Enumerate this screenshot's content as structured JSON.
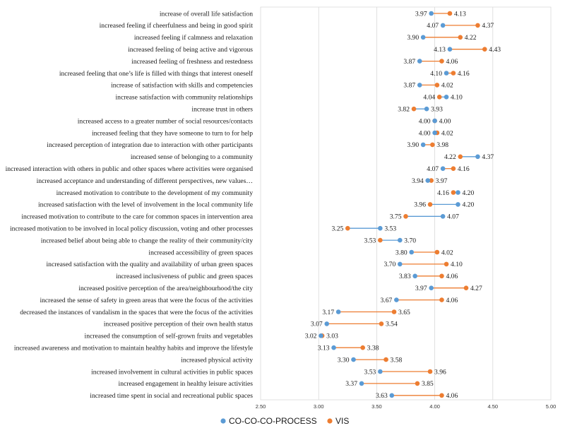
{
  "chart_data": {
    "type": "dumbbell",
    "xlim": [
      2.5,
      5.0
    ],
    "x_ticks": [
      "2.50",
      "3.00",
      "3.50",
      "4.00",
      "4.50",
      "5.00"
    ],
    "grid": "vertical",
    "legend_position": "bottom-center",
    "series": [
      {
        "name": "CO-CO-CO-PROCESS",
        "color": "#5b9bd5"
      },
      {
        "name": "VIS",
        "color": "#ed7d31"
      }
    ],
    "categories": [
      "increase of overall life satisfaction",
      "increased feeling if cheerfulness and being in good spirit",
      "increased feeling if calmness and relaxation",
      "increased feeling of being active and vigorous",
      "increased feeling of freshness and restedness",
      "increased feeling that one’s life is filled with things that interest oneself",
      "increase of satisfaction with skills and competencies",
      "increase satisfaction with community relationships",
      "increase trust in others",
      "increased access to a greater number of social resources/contacts",
      "increased feeling that they have someone to turn to for help",
      "increased perception of integration due to interaction with other participants",
      "increased sense of belonging to a community",
      "increased interaction with others in public and other spaces where activities were organised",
      "increased acceptance and understanding of different perspectives, new values…",
      "increased motivation to contribute to the development of my community",
      "increased satisfaction with the level of involvement in the local community life",
      "increased motivation to contribute to the care for common spaces in intervention area",
      "increased motivation to be involved in local policy discussion, voting and other processes",
      "increased belief about being able to change the reality of their community/city",
      "increased accessibility of green spaces",
      "increased satisfaction with the quality and availability of urban green spaces",
      "increased inclusiveness of public and green spaces",
      "increased positive perception of the area/neighbourhood/the city",
      "increased the sense of safety in green areas that were the focus of the activities",
      "decreased the instances of vandalism in the spaces that were the focus of the activities",
      "increased positive perception of their own health status",
      "increased the consumption of self-grown fruits and vegetables",
      "increased awareness and motivation to maintain healthy habits and improve the lifestyle",
      "increased physical activity",
      "increased involvement in cultural activities in public spaces",
      "increased engagement in healthy leisure activities",
      "increased time spent in social and recreational public spaces"
    ],
    "cococo": [
      3.97,
      4.07,
      3.9,
      4.13,
      3.87,
      4.1,
      3.87,
      4.1,
      3.93,
      4.0,
      4.0,
      3.9,
      4.37,
      4.07,
      3.94,
      4.2,
      4.2,
      4.07,
      3.53,
      3.7,
      3.8,
      3.7,
      3.83,
      3.97,
      3.67,
      3.17,
      3.07,
      3.02,
      3.13,
      3.3,
      3.53,
      3.37,
      3.63
    ],
    "vis": [
      4.13,
      4.37,
      4.22,
      4.43,
      4.06,
      4.16,
      4.02,
      4.04,
      3.82,
      4.0,
      4.02,
      3.98,
      4.22,
      4.16,
      3.97,
      4.16,
      3.96,
      3.75,
      3.25,
      3.53,
      4.02,
      4.1,
      4.06,
      4.27,
      4.06,
      3.65,
      3.54,
      3.03,
      3.38,
      3.58,
      3.96,
      3.85,
      4.06
    ],
    "value_labels": [
      [
        "3.97",
        "4.13"
      ],
      [
        "4.07",
        "4.37"
      ],
      [
        "3.90",
        "4.22"
      ],
      [
        "4.13",
        "4.43"
      ],
      [
        "3.87",
        "4.06"
      ],
      [
        "4.10",
        "4.16"
      ],
      [
        "3.87",
        "4.02"
      ],
      [
        "4.04",
        "4.10"
      ],
      [
        "3.82",
        "3.93"
      ],
      [
        "4.00",
        "4.00"
      ],
      [
        "4.00",
        "4.02"
      ],
      [
        "3.90",
        "3.98"
      ],
      [
        "4.22",
        "4.37"
      ],
      [
        "4.07",
        "4.16"
      ],
      [
        "3.94",
        "3.97"
      ],
      [
        "4.16",
        "4.20"
      ],
      [
        "3.96",
        "4.20"
      ],
      [
        "3.75",
        "4.07"
      ],
      [
        "3.25",
        "3.53"
      ],
      [
        "3.53",
        "3.70"
      ],
      [
        "3.80",
        "4.02"
      ],
      [
        "3.70",
        "4.10"
      ],
      [
        "3.83",
        "4.06"
      ],
      [
        "3.97",
        "4.27"
      ],
      [
        "3.67",
        "4.06"
      ],
      [
        "3.17",
        "3.65"
      ],
      [
        "3.07",
        "3.54"
      ],
      [
        "3.02",
        "3.03"
      ],
      [
        "3.13",
        "3.38"
      ],
      [
        "3.30",
        "3.58"
      ],
      [
        "3.53",
        "3.96"
      ],
      [
        "3.37",
        "3.85"
      ],
      [
        "3.63",
        "4.06"
      ]
    ]
  },
  "legend": {
    "series_a": "CO-CO-CO-PROCESS",
    "series_b": "VIS"
  }
}
